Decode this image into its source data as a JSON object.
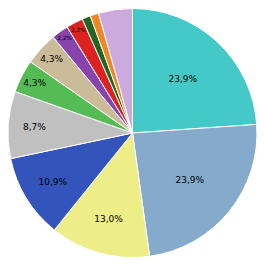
{
  "chart_data": {
    "type": "pie",
    "values": [
      23.9,
      23.9,
      13.0,
      10.9,
      8.7,
      4.3,
      4.3,
      2.2,
      2.2,
      1.1,
      1.1,
      4.4
    ],
    "value_labels": [
      "23,9%",
      "23,9%",
      "13,0%",
      "10,9%",
      "8,7%",
      "4,3%",
      "4,3%",
      "2,2%",
      "2,2%",
      null,
      null,
      null
    ],
    "colors": [
      "#45C8C8",
      "#85AACC",
      "#EEEE88",
      "#3355BB",
      "#C0C0C0",
      "#55BB55",
      "#CCBB99",
      "#8844AA",
      "#DD2222",
      "#226622",
      "#EE8822",
      "#CCAADD"
    ]
  }
}
